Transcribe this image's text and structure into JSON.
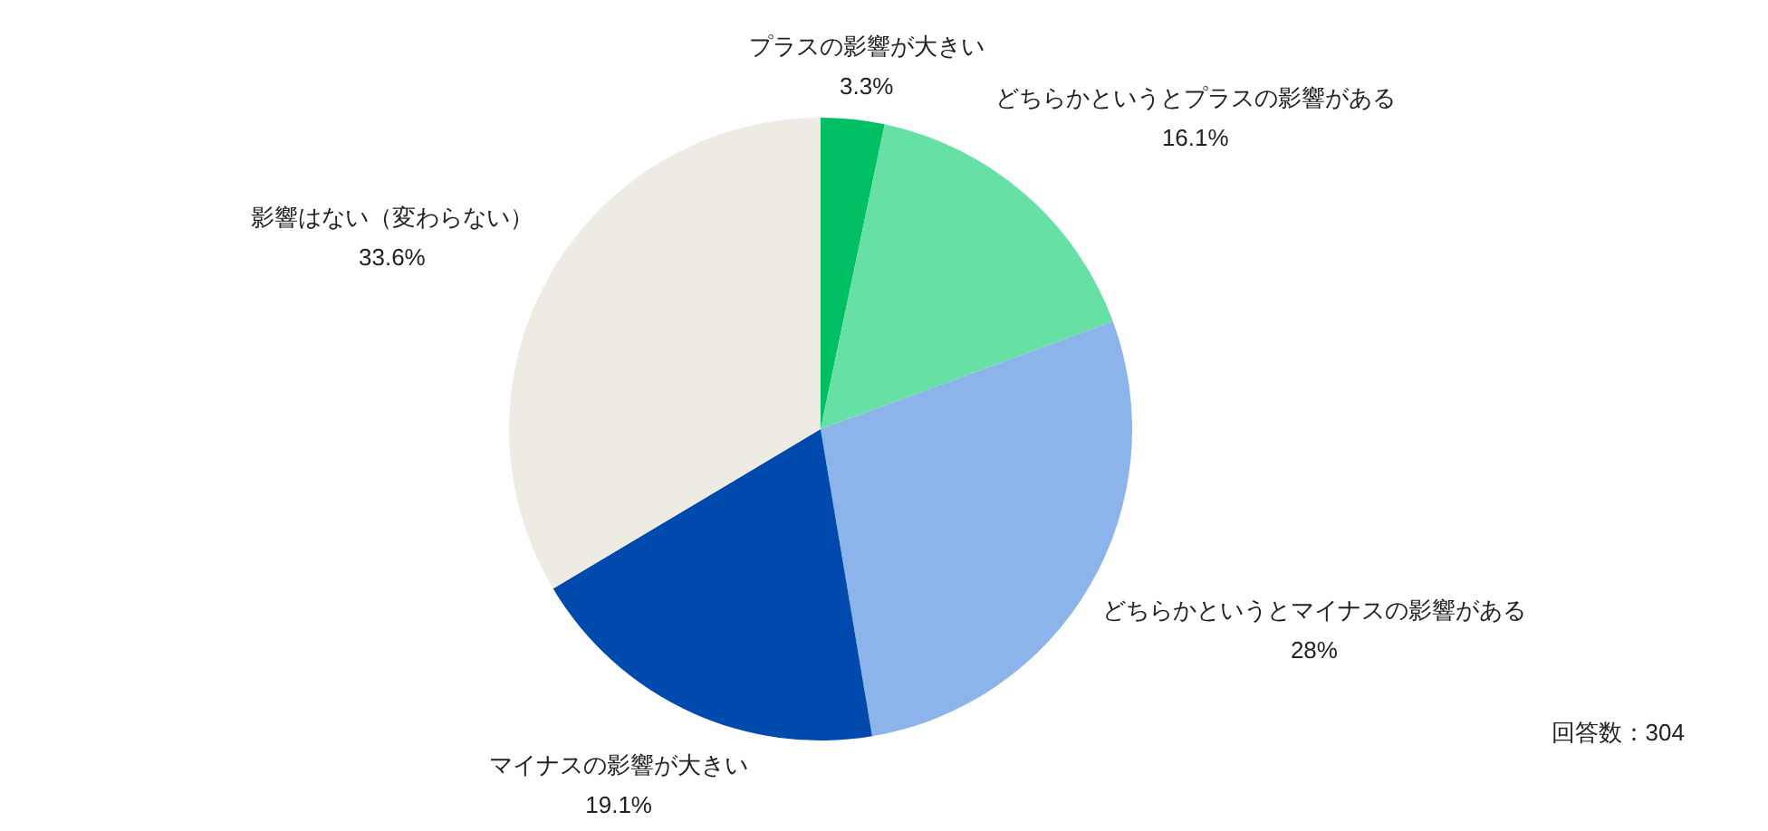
{
  "chart_data": {
    "type": "pie",
    "categories": [
      "プラスの影響が大きい",
      "どちらかというとプラスの影響がある",
      "どちらかというとマイナスの影響がある",
      "マイナスの影響が大きい",
      "影響はない（変わらない）"
    ],
    "values": [
      3.3,
      16.1,
      28,
      19.1,
      33.6
    ],
    "value_labels": [
      "3.3%",
      "16.1%",
      "28%",
      "19.1%",
      "33.6%"
    ],
    "colors": [
      "#00bf63",
      "#66e0a4",
      "#8db4ea",
      "#004aad",
      "#edebe3"
    ],
    "annotations": [
      "回答数：304"
    ]
  }
}
